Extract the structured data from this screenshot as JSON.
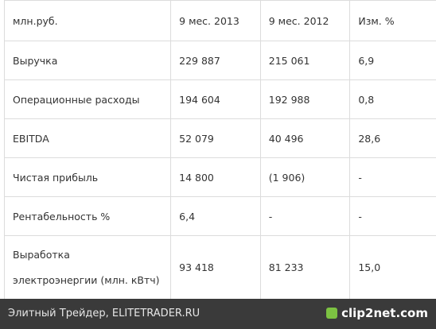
{
  "table": {
    "header": [
      "млн.руб.",
      "9 мес. 2013",
      "9 мес. 2012",
      "Изм. %"
    ],
    "rows": [
      [
        "Выручка",
        "229 887",
        "215 061",
        "6,9"
      ],
      [
        "Операционные расходы",
        "194 604",
        "192 988",
        "0,8"
      ],
      [
        "EBITDA",
        "52 079",
        "40 496",
        "28,6"
      ],
      [
        "Чистая прибыль",
        "14 800",
        "(1 906)",
        "-"
      ],
      [
        "Рентабельность %",
        "6,4",
        "-",
        "-"
      ],
      [
        "Выработка\nэлектроэнергии (млн. кВтч)",
        "93 418",
        "81 233",
        "15,0"
      ]
    ]
  },
  "footer": {
    "source": "Элитный Трейдер, ELITETRADER.RU",
    "logo": "clip2net.com"
  }
}
